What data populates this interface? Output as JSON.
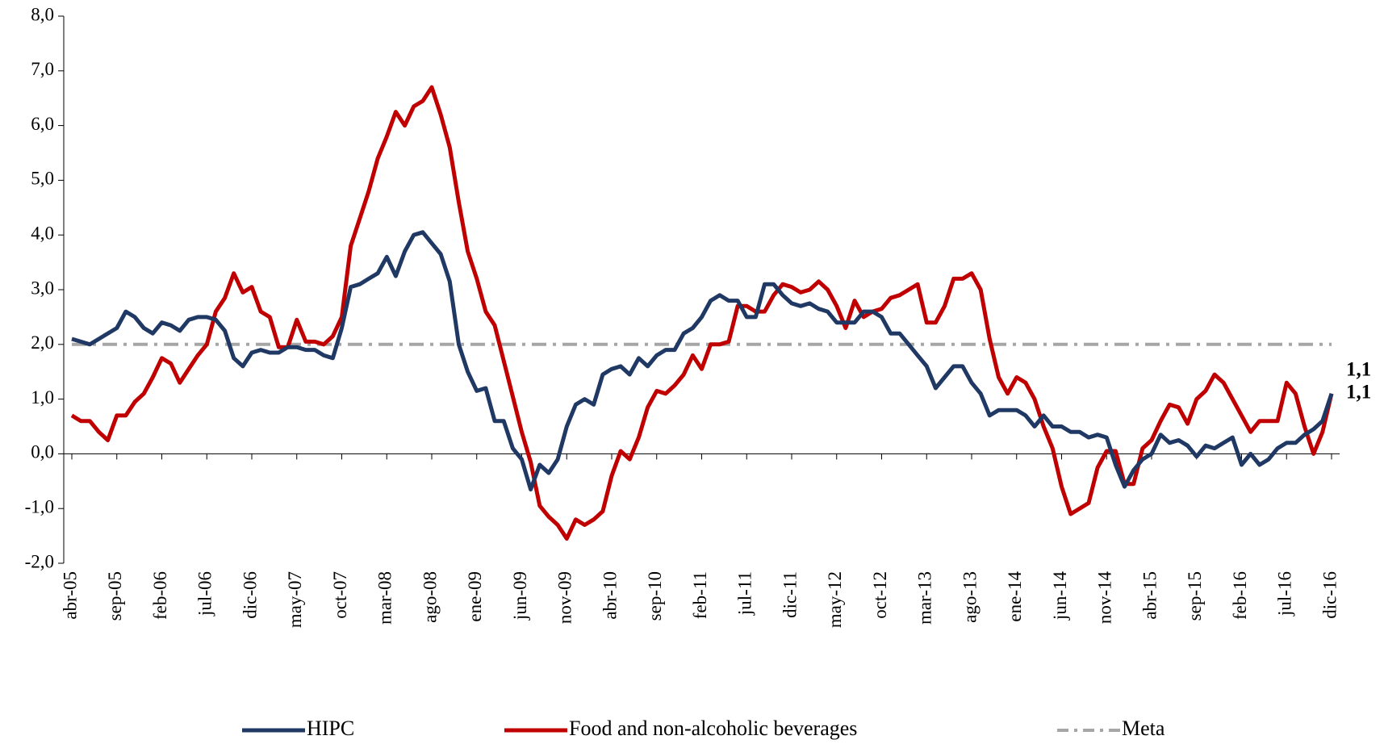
{
  "chart_data": {
    "type": "line",
    "categories": [
      "abr-05",
      null,
      null,
      null,
      null,
      "sep-05",
      null,
      null,
      null,
      null,
      "feb-06",
      null,
      null,
      null,
      null,
      "jul-06",
      null,
      null,
      null,
      null,
      "dic-06",
      null,
      null,
      null,
      null,
      "may-07",
      null,
      null,
      null,
      null,
      "oct-07",
      null,
      null,
      null,
      null,
      "mar-08",
      null,
      null,
      null,
      null,
      "ago-08",
      null,
      null,
      null,
      null,
      "ene-09",
      null,
      null,
      null,
      null,
      "jun-09",
      null,
      null,
      null,
      null,
      "nov-09",
      null,
      null,
      null,
      null,
      "abr-10",
      null,
      null,
      null,
      null,
      "sep-10",
      null,
      null,
      null,
      null,
      "feb-11",
      null,
      null,
      null,
      null,
      "jul-11",
      null,
      null,
      null,
      null,
      "dic-11",
      null,
      null,
      null,
      null,
      "may-12",
      null,
      null,
      null,
      null,
      "oct-12",
      null,
      null,
      null,
      null,
      "mar-13",
      null,
      null,
      null,
      null,
      "ago-13",
      null,
      null,
      null,
      null,
      "ene-14",
      null,
      null,
      null,
      null,
      "jun-14",
      null,
      null,
      null,
      null,
      "nov-14",
      null,
      null,
      null,
      null,
      "abr-15",
      null,
      null,
      null,
      null,
      "sep-15",
      null,
      null,
      null,
      null,
      "feb-16",
      null,
      null,
      null,
      null,
      "jul-16",
      null,
      null,
      null,
      null,
      "dic-16"
    ],
    "series": [
      {
        "name": "HIPC",
        "color": "#1f3864",
        "style": "solid",
        "values": [
          2.1,
          2.05,
          2.0,
          2.1,
          2.2,
          2.3,
          2.6,
          2.5,
          2.3,
          2.2,
          2.4,
          2.35,
          2.25,
          2.45,
          2.5,
          2.5,
          2.45,
          2.25,
          1.75,
          1.6,
          1.85,
          1.9,
          1.85,
          1.85,
          1.95,
          1.95,
          1.9,
          1.9,
          1.8,
          1.75,
          2.3,
          3.05,
          3.1,
          3.2,
          3.3,
          3.6,
          3.25,
          3.7,
          4.0,
          4.05,
          3.85,
          3.65,
          3.15,
          2.0,
          1.5,
          1.15,
          1.2,
          0.6,
          0.6,
          0.1,
          -0.1,
          -0.65,
          -0.2,
          -0.35,
          -0.1,
          0.5,
          0.9,
          1.0,
          0.9,
          1.45,
          1.55,
          1.6,
          1.45,
          1.75,
          1.6,
          1.8,
          1.9,
          1.9,
          2.2,
          2.3,
          2.5,
          2.8,
          2.9,
          2.8,
          2.8,
          2.5,
          2.5,
          3.1,
          3.1,
          2.9,
          2.75,
          2.7,
          2.75,
          2.65,
          2.6,
          2.4,
          2.4,
          2.4,
          2.6,
          2.6,
          2.5,
          2.2,
          2.2,
          2.0,
          1.8,
          1.6,
          1.2,
          1.4,
          1.6,
          1.6,
          1.3,
          1.1,
          0.7,
          0.8,
          0.8,
          0.8,
          0.7,
          0.5,
          0.7,
          0.5,
          0.5,
          0.4,
          0.4,
          0.3,
          0.35,
          0.3,
          -0.2,
          -0.6,
          -0.3,
          -0.1,
          0.0,
          0.35,
          0.2,
          0.25,
          0.15,
          -0.05,
          0.15,
          0.1,
          0.2,
          0.3,
          -0.2,
          0.0,
          -0.2,
          -0.1,
          0.1,
          0.2,
          0.2,
          0.35,
          0.45,
          0.6,
          1.1
        ]
      },
      {
        "name": "Food and non-alcoholic beverages",
        "color": "#c00000",
        "style": "solid",
        "values": [
          0.7,
          0.6,
          0.6,
          0.4,
          0.25,
          0.7,
          0.7,
          0.95,
          1.1,
          1.4,
          1.75,
          1.65,
          1.3,
          1.55,
          1.8,
          2.0,
          2.6,
          2.85,
          3.3,
          2.95,
          3.05,
          2.6,
          2.5,
          1.95,
          1.95,
          2.45,
          2.05,
          2.05,
          2.0,
          2.15,
          2.5,
          3.8,
          4.3,
          4.8,
          5.4,
          5.8,
          6.25,
          6.0,
          6.35,
          6.45,
          6.7,
          6.2,
          5.6,
          4.6,
          3.7,
          3.2,
          2.6,
          2.35,
          1.7,
          1.05,
          0.4,
          -0.15,
          -0.95,
          -1.15,
          -1.3,
          -1.55,
          -1.2,
          -1.3,
          -1.2,
          -1.05,
          -0.4,
          0.05,
          -0.1,
          0.3,
          0.85,
          1.15,
          1.1,
          1.25,
          1.45,
          1.8,
          1.55,
          2.0,
          2.0,
          2.05,
          2.7,
          2.7,
          2.6,
          2.6,
          2.9,
          3.1,
          3.05,
          2.95,
          3.0,
          3.15,
          3.0,
          2.7,
          2.3,
          2.8,
          2.5,
          2.6,
          2.65,
          2.85,
          2.9,
          3.0,
          3.1,
          2.4,
          2.4,
          2.7,
          3.2,
          3.2,
          3.3,
          3.0,
          2.1,
          1.4,
          1.1,
          1.4,
          1.3,
          1.0,
          0.5,
          0.1,
          -0.6,
          -1.1,
          -1.0,
          -0.9,
          -0.25,
          0.05,
          0.05,
          -0.55,
          -0.55,
          0.1,
          0.25,
          0.6,
          0.9,
          0.85,
          0.55,
          1.0,
          1.15,
          1.45,
          1.3,
          1.0,
          0.7,
          0.4,
          0.6,
          0.6,
          0.6,
          1.3,
          1.1,
          0.5,
          0.0,
          0.4,
          1.1
        ]
      },
      {
        "name": "Meta",
        "color": "#a6a6a6",
        "style": "dashdot",
        "values": [
          2,
          2,
          2,
          2,
          2,
          2,
          2,
          2,
          2,
          2,
          2,
          2,
          2,
          2,
          2,
          2,
          2,
          2,
          2,
          2,
          2,
          2,
          2,
          2,
          2,
          2,
          2,
          2,
          2,
          2,
          2,
          2,
          2,
          2,
          2,
          2,
          2,
          2,
          2,
          2,
          2,
          2,
          2,
          2,
          2,
          2,
          2,
          2,
          2,
          2,
          2,
          2,
          2,
          2,
          2,
          2,
          2,
          2,
          2,
          2,
          2,
          2,
          2,
          2,
          2,
          2,
          2,
          2,
          2,
          2,
          2,
          2,
          2,
          2,
          2,
          2,
          2,
          2,
          2,
          2,
          2,
          2,
          2,
          2,
          2,
          2,
          2,
          2,
          2,
          2,
          2,
          2,
          2,
          2,
          2,
          2,
          2,
          2,
          2,
          2,
          2,
          2,
          2,
          2,
          2,
          2,
          2,
          2,
          2,
          2,
          2,
          2,
          2,
          2,
          2,
          2,
          2,
          2,
          2,
          2,
          2,
          2,
          2,
          2,
          2,
          2,
          2,
          2,
          2,
          2,
          2,
          2,
          2,
          2,
          2,
          2,
          2,
          2,
          2,
          2,
          2
        ]
      }
    ],
    "annotations": [
      {
        "text": "1,1",
        "color": "#1f3864"
      },
      {
        "text": "1,1",
        "color": "#c00000"
      }
    ],
    "ylim": [
      -2,
      8
    ],
    "yticks": [
      {
        "value": -2,
        "label": "-2,0"
      },
      {
        "value": -1,
        "label": "-1,0"
      },
      {
        "value": 0,
        "label": "0,0"
      },
      {
        "value": 1,
        "label": "1,0"
      },
      {
        "value": 2,
        "label": "2,0"
      },
      {
        "value": 3,
        "label": "3,0"
      },
      {
        "value": 4,
        "label": "4,0"
      },
      {
        "value": 5,
        "label": "5,0"
      },
      {
        "value": 6,
        "label": "6,0"
      },
      {
        "value": 7,
        "label": "7,0"
      },
      {
        "value": 8,
        "label": "8,0"
      }
    ],
    "grid": false,
    "legend": "bottom"
  }
}
